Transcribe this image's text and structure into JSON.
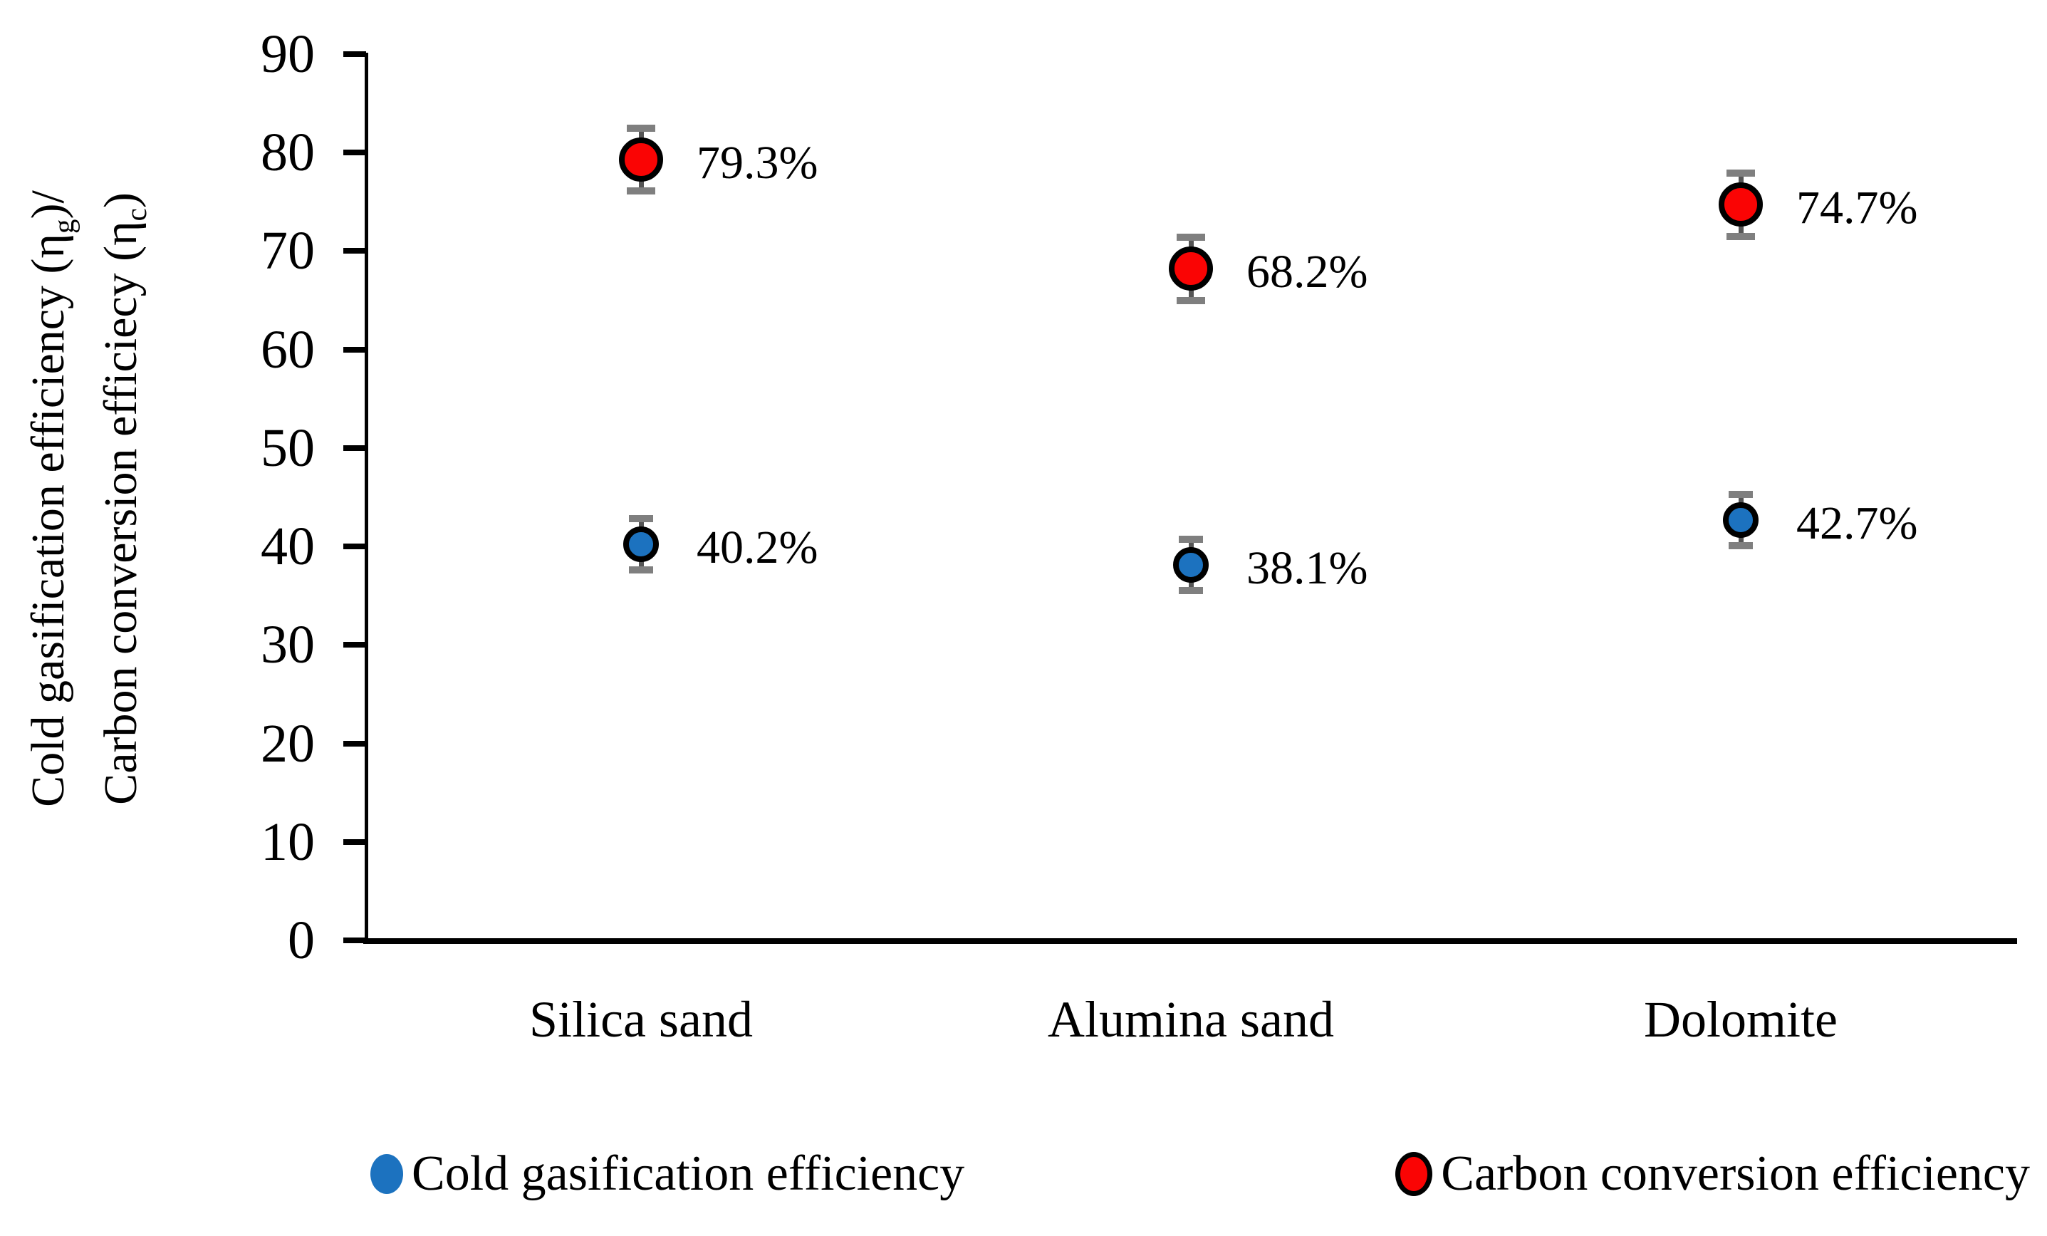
{
  "chart_data": {
    "type": "scatter",
    "title": "",
    "categories": [
      "Silica sand",
      "Alumina sand",
      "Dolomite"
    ],
    "series": [
      {
        "name": "Cold gasification efficiency",
        "color": "#1C72BF",
        "values": [
          40.2,
          38.1,
          42.7
        ],
        "point_labels": [
          "40.2%",
          "38.1%",
          "42.7%"
        ],
        "error_bar": 2.6
      },
      {
        "name": "Carbon conversion efficiency",
        "color": "#FA0404",
        "values": [
          79.3,
          68.2,
          74.7
        ],
        "point_labels": [
          "79.3%",
          "68.2%",
          "74.7%"
        ],
        "error_bar": 3.2
      }
    ],
    "ylabel_lines": [
      [
        {
          "text": "Cold gasification efficiency (η"
        },
        {
          "text": "g",
          "sub": true
        },
        {
          "text": ")/"
        }
      ],
      [
        {
          "text": "Carbon conversion efficiecy (η"
        },
        {
          "text": "c",
          "sub": true
        },
        {
          "text": ")"
        }
      ]
    ],
    "xlabel": "",
    "ylim": [
      0,
      90
    ],
    "yticks": [
      90,
      80,
      70,
      60,
      50,
      40,
      30,
      20,
      10,
      0
    ],
    "grid": false,
    "legend_position": "bottom",
    "marker_outline_color": "#000000",
    "error_bar_color": "#7F7F7F"
  }
}
